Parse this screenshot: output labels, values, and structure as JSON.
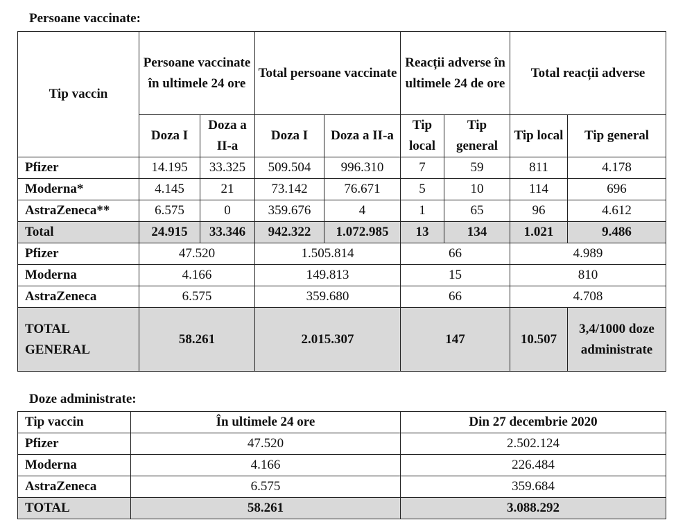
{
  "table1": {
    "title": "Persoane vaccinate:",
    "header": {
      "tip": "Tip vaccin",
      "groups": [
        "Persoane vaccinate în ultimele 24 ore",
        "Total persoane vaccinate",
        "Reacții adverse în ultimele 24 de ore",
        "Total reacții adverse"
      ],
      "sub": [
        "Doza I",
        "Doza a II-a",
        "Doza I",
        "Doza a II-a",
        "Tip local",
        "Tip general",
        "Tip local",
        "Tip general"
      ]
    },
    "rows": [
      {
        "name": "Pfizer",
        "values": [
          "14.195",
          "33.325",
          "509.504",
          "996.310",
          "7",
          "59",
          "811",
          "4.178"
        ]
      },
      {
        "name": "Moderna*",
        "values": [
          "4.145",
          "21",
          "73.142",
          "76.671",
          "5",
          "10",
          "114",
          "696"
        ]
      },
      {
        "name": "AstraZeneca**",
        "values": [
          "6.575",
          "0",
          "359.676",
          "4",
          "1",
          "65",
          "96",
          "4.612"
        ]
      }
    ],
    "total": {
      "name": "Total",
      "values": [
        "24.915",
        "33.346",
        "942.322",
        "1.072.985",
        "13",
        "134",
        "1.021",
        "9.486"
      ]
    },
    "summary_rows": [
      {
        "name": "Pfizer",
        "values": [
          "47.520",
          "1.505.814",
          "66",
          "4.989"
        ]
      },
      {
        "name": "Moderna",
        "values": [
          "4.166",
          "149.813",
          "15",
          "810"
        ]
      },
      {
        "name": "AstraZeneca",
        "values": [
          "6.575",
          "359.680",
          "66",
          "4.708"
        ]
      }
    ],
    "general": {
      "name": "TOTAL GENERAL",
      "values": [
        "58.261",
        "2.015.307",
        "147",
        "10.507",
        "3,4/1000 doze administrate"
      ]
    }
  },
  "table2": {
    "title": "Doze administrate:",
    "header": [
      "Tip vaccin",
      "În ultimele 24 ore",
      "Din 27 decembrie 2020"
    ],
    "rows": [
      [
        "Pfizer",
        "47.520",
        "2.502.124"
      ],
      [
        "Moderna",
        "4.166",
        "226.484"
      ],
      [
        "AstraZeneca",
        "6.575",
        "359.684"
      ]
    ],
    "total": [
      "TOTAL",
      "58.261",
      "3.088.292"
    ]
  }
}
